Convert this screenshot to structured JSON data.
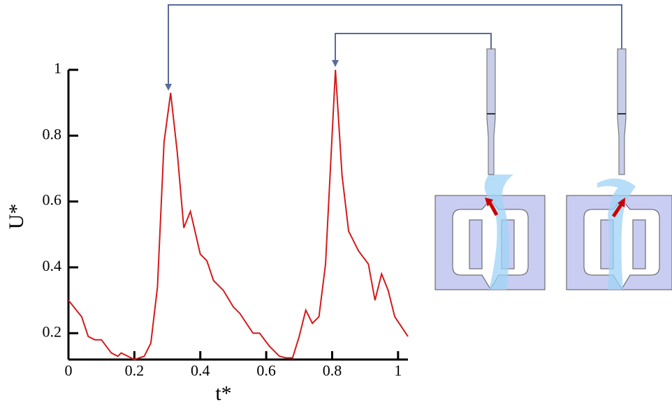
{
  "chart_data": {
    "type": "line",
    "x_label": "t*",
    "y_label": "U*",
    "x": [
      0,
      0.04,
      0.06,
      0.08,
      0.1,
      0.13,
      0.15,
      0.16,
      0.18,
      0.2,
      0.23,
      0.25,
      0.27,
      0.29,
      0.31,
      0.33,
      0.35,
      0.37,
      0.4,
      0.42,
      0.44,
      0.47,
      0.5,
      0.52,
      0.56,
      0.58,
      0.61,
      0.64,
      0.66,
      0.68,
      0.7,
      0.72,
      0.74,
      0.76,
      0.78,
      0.81,
      0.83,
      0.85,
      0.88,
      0.91,
      0.93,
      0.95,
      0.97,
      0.99,
      1.03
    ],
    "series": [
      {
        "color": "#d41a1a",
        "values": [
          0.3,
          0.25,
          0.19,
          0.18,
          0.18,
          0.14,
          0.13,
          0.14,
          0.13,
          0.12,
          0.13,
          0.17,
          0.34,
          0.78,
          0.93,
          0.75,
          0.52,
          0.57,
          0.44,
          0.42,
          0.36,
          0.33,
          0.28,
          0.26,
          0.2,
          0.2,
          0.16,
          0.13,
          0.125,
          0.125,
          0.19,
          0.27,
          0.23,
          0.25,
          0.41,
          1.0,
          0.68,
          0.51,
          0.45,
          0.41,
          0.3,
          0.38,
          0.33,
          0.25,
          0.19
        ]
      }
    ],
    "xlim": [
      0,
      1.03
    ],
    "ylim": [
      0.12,
      1
    ],
    "xticks": [
      0,
      0.2,
      0.4,
      0.6,
      0.8,
      1
    ],
    "yticks": [
      0.2,
      0.4,
      0.6,
      0.8,
      1
    ]
  }
}
